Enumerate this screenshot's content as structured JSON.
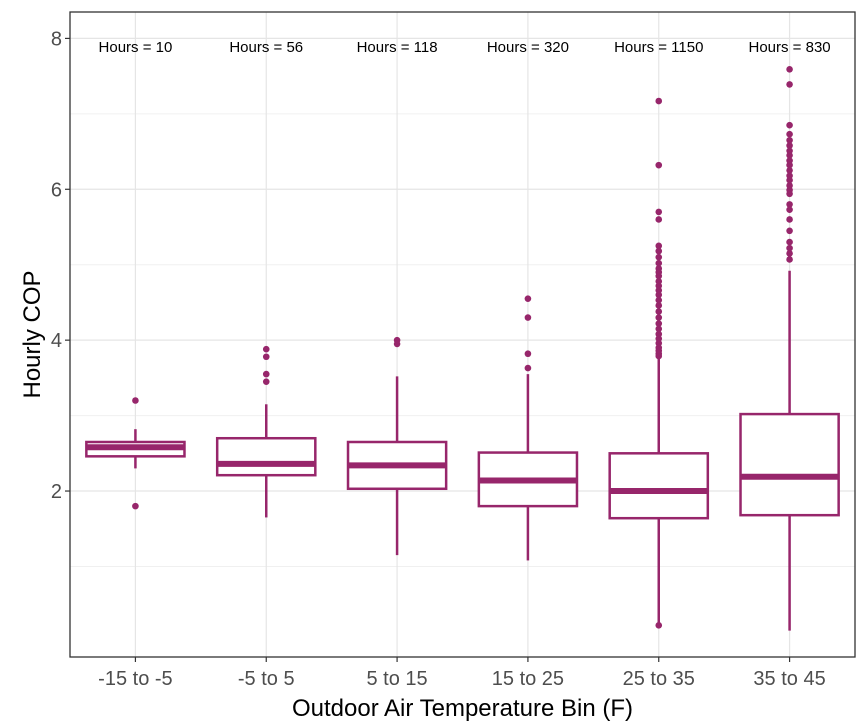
{
  "chart_data": {
    "type": "box",
    "xlabel": "Outdoor Air Temperature Bin (F)",
    "ylabel": "Hourly COP",
    "ylim": [
      -0.2,
      8.35
    ],
    "y_ticks": [
      2,
      4,
      6,
      8
    ],
    "y_minor_grid": [
      1,
      3,
      5,
      7
    ],
    "grid": true,
    "color": "#97266b",
    "categories": [
      "-15 to -5",
      "-5 to 5",
      "5 to 15",
      "15 to 25",
      "25 to 35",
      "35 to 45"
    ],
    "annotations": [
      "Hours = 10",
      "Hours = 56",
      "Hours = 118",
      "Hours = 320",
      "Hours = 1150",
      "Hours = 830"
    ],
    "boxes": [
      {
        "whisker_low": 2.3,
        "q1": 2.46,
        "median": 2.58,
        "q3": 2.65,
        "whisker_high": 2.82,
        "outliers": [
          3.2,
          1.8
        ]
      },
      {
        "whisker_low": 1.65,
        "q1": 2.21,
        "median": 2.36,
        "q3": 2.7,
        "whisker_high": 3.15,
        "outliers": [
          3.88,
          3.78,
          3.55,
          3.45
        ]
      },
      {
        "whisker_low": 1.15,
        "q1": 2.03,
        "median": 2.34,
        "q3": 2.65,
        "whisker_high": 3.52,
        "outliers": [
          4.0,
          3.95
        ]
      },
      {
        "whisker_low": 1.08,
        "q1": 1.8,
        "median": 2.14,
        "q3": 2.51,
        "whisker_high": 3.55,
        "outliers": [
          4.55,
          4.3,
          3.82,
          3.63
        ]
      },
      {
        "whisker_low": 0.25,
        "q1": 1.64,
        "median": 2.0,
        "q3": 2.5,
        "whisker_high": 3.77,
        "outliers": [
          0.22,
          7.17,
          6.32,
          5.7,
          5.6,
          5.25,
          5.18,
          5.1,
          5.02,
          4.95,
          4.9,
          4.85,
          4.78,
          4.72,
          4.66,
          4.6,
          4.53,
          4.46,
          4.38,
          4.3,
          4.22,
          4.15,
          4.08,
          4.02,
          3.96,
          3.9,
          3.86,
          3.82,
          3.79
        ]
      },
      {
        "whisker_low": 0.15,
        "q1": 1.68,
        "median": 2.19,
        "q3": 3.02,
        "whisker_high": 4.92,
        "outliers": [
          7.59,
          7.39,
          6.85,
          6.73,
          6.65,
          6.58,
          6.51,
          6.45,
          6.38,
          6.32,
          6.25,
          6.18,
          6.12,
          6.05,
          5.99,
          5.94,
          5.8,
          5.73,
          5.6,
          5.45,
          5.3,
          5.22,
          5.15,
          5.07
        ]
      }
    ]
  }
}
